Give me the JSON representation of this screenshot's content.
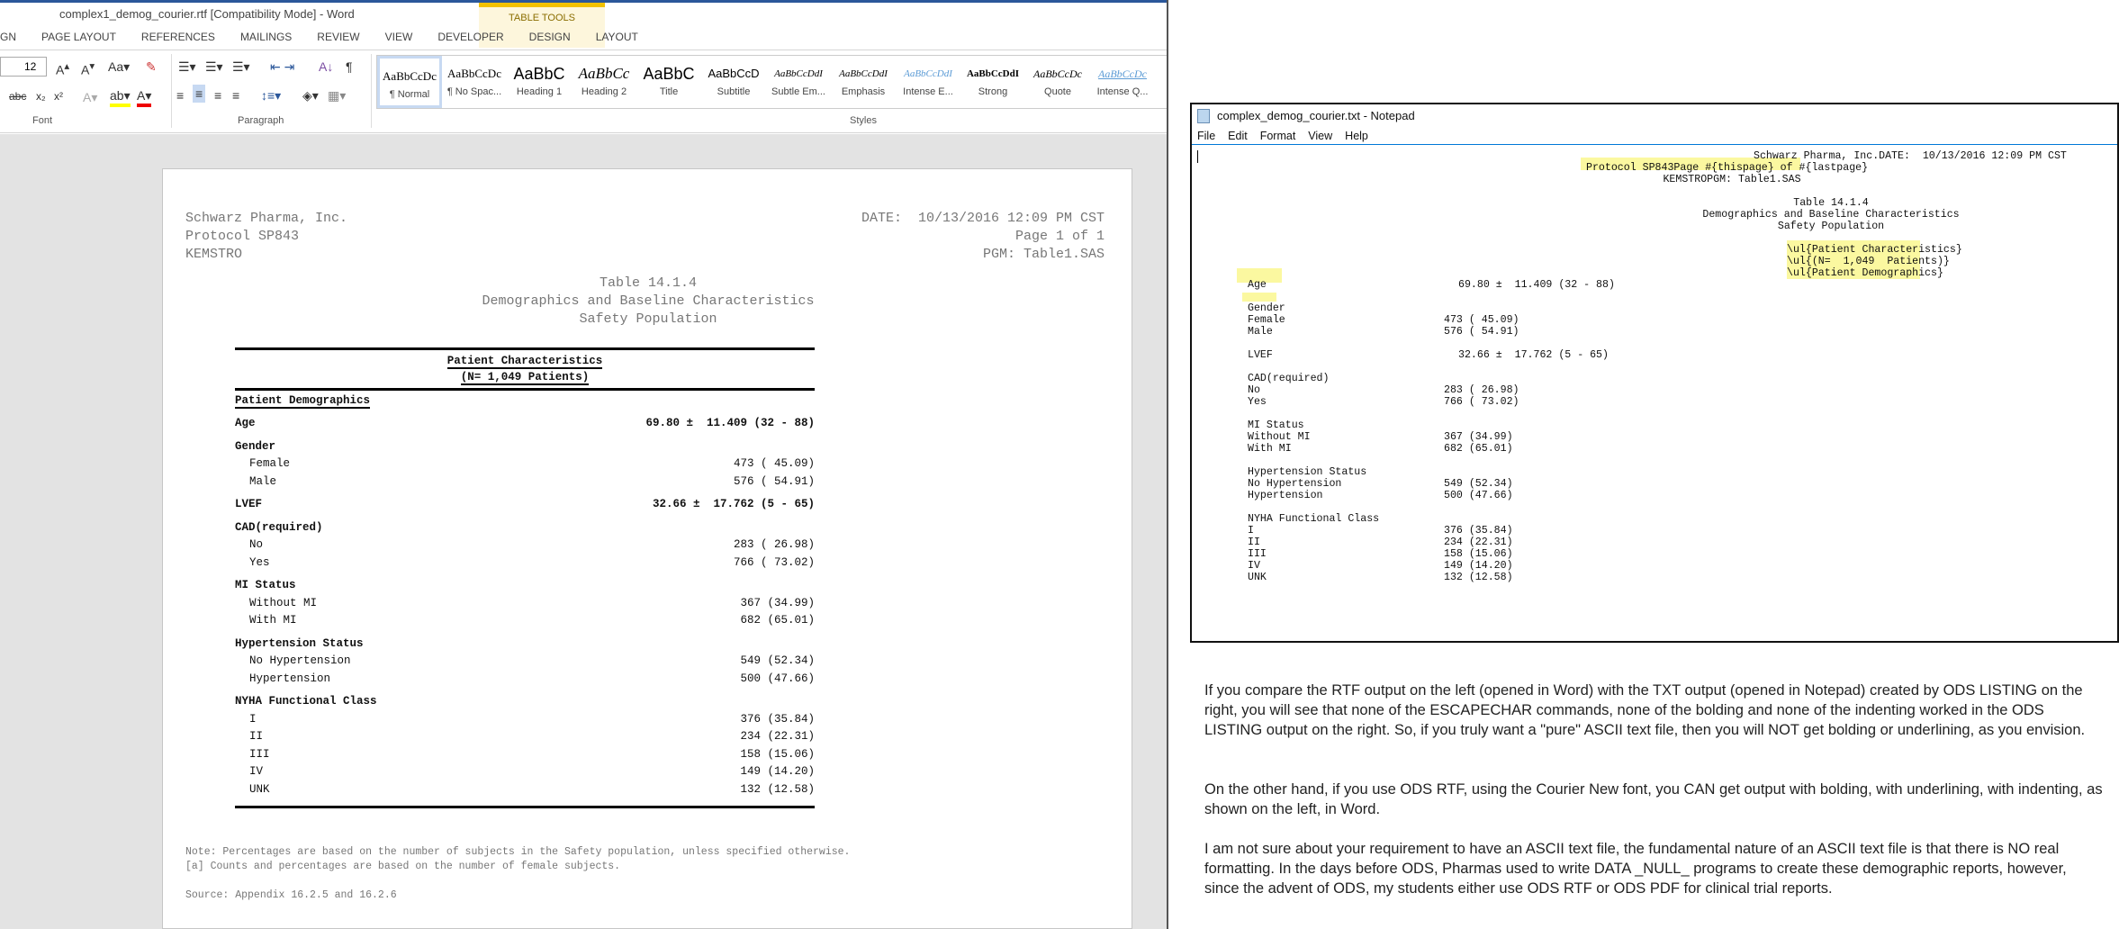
{
  "word": {
    "title": "complex1_demog_courier.rtf [Compatibility Mode] - Word",
    "table_tools": "TABLE TOOLS",
    "tabs": [
      "GN",
      "PAGE LAYOUT",
      "REFERENCES",
      "MAILINGS",
      "REVIEW",
      "VIEW",
      "DEVELOPER",
      "DESIGN",
      "LAYOUT"
    ],
    "font_size": "12",
    "groups": {
      "font": "Font",
      "paragraph": "Paragraph",
      "styles": "Styles"
    },
    "styles": [
      {
        "preview": "AaBbCcDc",
        "name": "¶ Normal"
      },
      {
        "preview": "AaBbCcDc",
        "name": "¶ No Spac..."
      },
      {
        "preview": "AaBbC",
        "name": "Heading 1"
      },
      {
        "preview": "AaBbCc",
        "name": "Heading 2"
      },
      {
        "preview": "AaBbC",
        "name": "Title"
      },
      {
        "preview": "AaBbCcD",
        "name": "Subtitle"
      },
      {
        "preview": "AaBbCcDdI",
        "name": "Subtle Em..."
      },
      {
        "preview": "AaBbCcDdI",
        "name": "Emphasis"
      },
      {
        "preview": "AaBbCcDdI",
        "name": "Intense E..."
      },
      {
        "preview": "AaBbCcDdI",
        "name": "Strong"
      },
      {
        "preview": "AaBbCcDc",
        "name": "Quote"
      },
      {
        "preview": "AaBbCcDc",
        "name": "Intense Q..."
      }
    ],
    "doc": {
      "company": "Schwarz Pharma, Inc.",
      "date": "DATE:  10/13/2016 12:09 PM CST",
      "protocol": "Protocol SP843",
      "page": "Page 1 of 1",
      "drug": "KEMSTRO",
      "pgm": "PGM: Table1.SAS",
      "table_no": "Table 14.1.4",
      "title": "Demographics and Baseline Characteristics",
      "population": "Safety Population",
      "col_head1": "Patient Characteristics",
      "col_head2": "(N=  1,049  Patients)",
      "section": "Patient Demographics",
      "rows": [
        {
          "type": "grp",
          "label": "Age",
          "value": "69.80 ±  11.409 (32 - 88)"
        },
        {
          "type": "grp",
          "label": "Gender",
          "value": ""
        },
        {
          "type": "item",
          "label": "Female",
          "value": "473 ( 45.09)"
        },
        {
          "type": "item",
          "label": "Male",
          "value": "576 ( 54.91)"
        },
        {
          "type": "grp",
          "label": "LVEF",
          "value": "32.66 ±  17.762 (5 - 65)"
        },
        {
          "type": "grp",
          "label": "CAD(required)",
          "value": ""
        },
        {
          "type": "item",
          "label": "No",
          "value": "283 ( 26.98)"
        },
        {
          "type": "item",
          "label": "Yes",
          "value": "766 ( 73.02)"
        },
        {
          "type": "grp",
          "label": "MI Status",
          "value": ""
        },
        {
          "type": "item",
          "label": "Without MI",
          "value": "367 (34.99)"
        },
        {
          "type": "item",
          "label": "With MI",
          "value": "682 (65.01)"
        },
        {
          "type": "grp",
          "label": "Hypertension Status",
          "value": ""
        },
        {
          "type": "item",
          "label": "No Hypertension",
          "value": "549 (52.34)"
        },
        {
          "type": "item",
          "label": "Hypertension",
          "value": "500 (47.66)"
        },
        {
          "type": "grp",
          "label": "NYHA Functional Class",
          "value": ""
        },
        {
          "type": "item",
          "label": "I",
          "value": "376 (35.84)"
        },
        {
          "type": "item",
          "label": "II",
          "value": "234 (22.31)"
        },
        {
          "type": "item",
          "label": "III",
          "value": "158 (15.06)"
        },
        {
          "type": "item",
          "label": "IV",
          "value": "149 (14.20)"
        },
        {
          "type": "item",
          "label": "UNK",
          "value": "132 (12.58)"
        }
      ],
      "note1": "Note: Percentages are based on the number of subjects in the Safety population, unless specified otherwise.",
      "note2": "[a] Counts and percentages are based on the number of female subjects.",
      "source": "Source: Appendix 16.2.5 and 16.2.6"
    }
  },
  "notepad": {
    "title": "complex_demog_courier.txt - Notepad",
    "menu": [
      "File",
      "Edit",
      "Format",
      "View",
      "Help"
    ],
    "header": [
      "Schwarz Pharma, Inc.DATE:  10/13/2016 12:09 PM CST",
      "Protocol SP843Page #{thispage} of #{lastpage}",
      "KEMSTROPGM: Table1.SAS"
    ],
    "titles": [
      "Table 14.1.4",
      "Demographics and Baseline Characteristics",
      "Safety Population"
    ],
    "ul_lines": [
      "\\ul{Patient Characteristics}",
      "\\ul{(N=  1,049  Patients)}",
      "\\ul{Patient Demographics}"
    ],
    "rows": [
      {
        "label": "Age",
        "value": "69.80 ±  11.409 (32 - 88)"
      },
      {
        "label": "Gender",
        "value": ""
      },
      {
        "label": "Female",
        "value": "473 ( 45.09)"
      },
      {
        "label": "Male",
        "value": "576 ( 54.91)"
      },
      {
        "label": "LVEF",
        "value": "32.66 ±  17.762 (5 - 65)"
      },
      {
        "label": "CAD(required)",
        "value": ""
      },
      {
        "label": "No",
        "value": "283 ( 26.98)"
      },
      {
        "label": "Yes",
        "value": "766 ( 73.02)"
      },
      {
        "label": "MI Status",
        "value": ""
      },
      {
        "label": "Without MI",
        "value": "367 (34.99)"
      },
      {
        "label": "With MI",
        "value": "682 (65.01)"
      },
      {
        "label": "Hypertension Status",
        "value": ""
      },
      {
        "label": "No Hypertension",
        "value": "549 (52.34)"
      },
      {
        "label": "Hypertension",
        "value": "500 (47.66)"
      },
      {
        "label": "NYHA Functional Class",
        "value": ""
      },
      {
        "label": "I",
        "value": "376 (35.84)"
      },
      {
        "label": "II",
        "value": "234 (22.31)"
      },
      {
        "label": "III",
        "value": "158 (15.06)"
      },
      {
        "label": "IV",
        "value": "149 (14.20)"
      },
      {
        "label": "UNK",
        "value": "132 (12.58)"
      }
    ]
  },
  "commentary": [
    "If you compare the RTF output on the left (opened in Word) with the TXT output (opened in Notepad) created by ODS LISTING on the right, you will see that none of the  ESCAPECHAR commands, none of the bolding and none of the indenting worked in the ODS LISTING output on the right. So, if you truly want a \"pure\" ASCII text file, then you will NOT get bolding or underlining, as you envision.",
    "On the other hand, if you use ODS RTF, using the Courier New font, you CAN get output with bolding, with underlining, with indenting, as shown on the left, in Word.",
    "I am not sure about your requirement to have an ASCII text file, the fundamental nature of an ASCII text file is that there is NO real formatting. In the days before ODS, Pharmas used to write DATA _NULL_ programs to create these demographic reports, however, since the advent of ODS, my students either use ODS RTF or ODS PDF for clinical trial reports."
  ]
}
